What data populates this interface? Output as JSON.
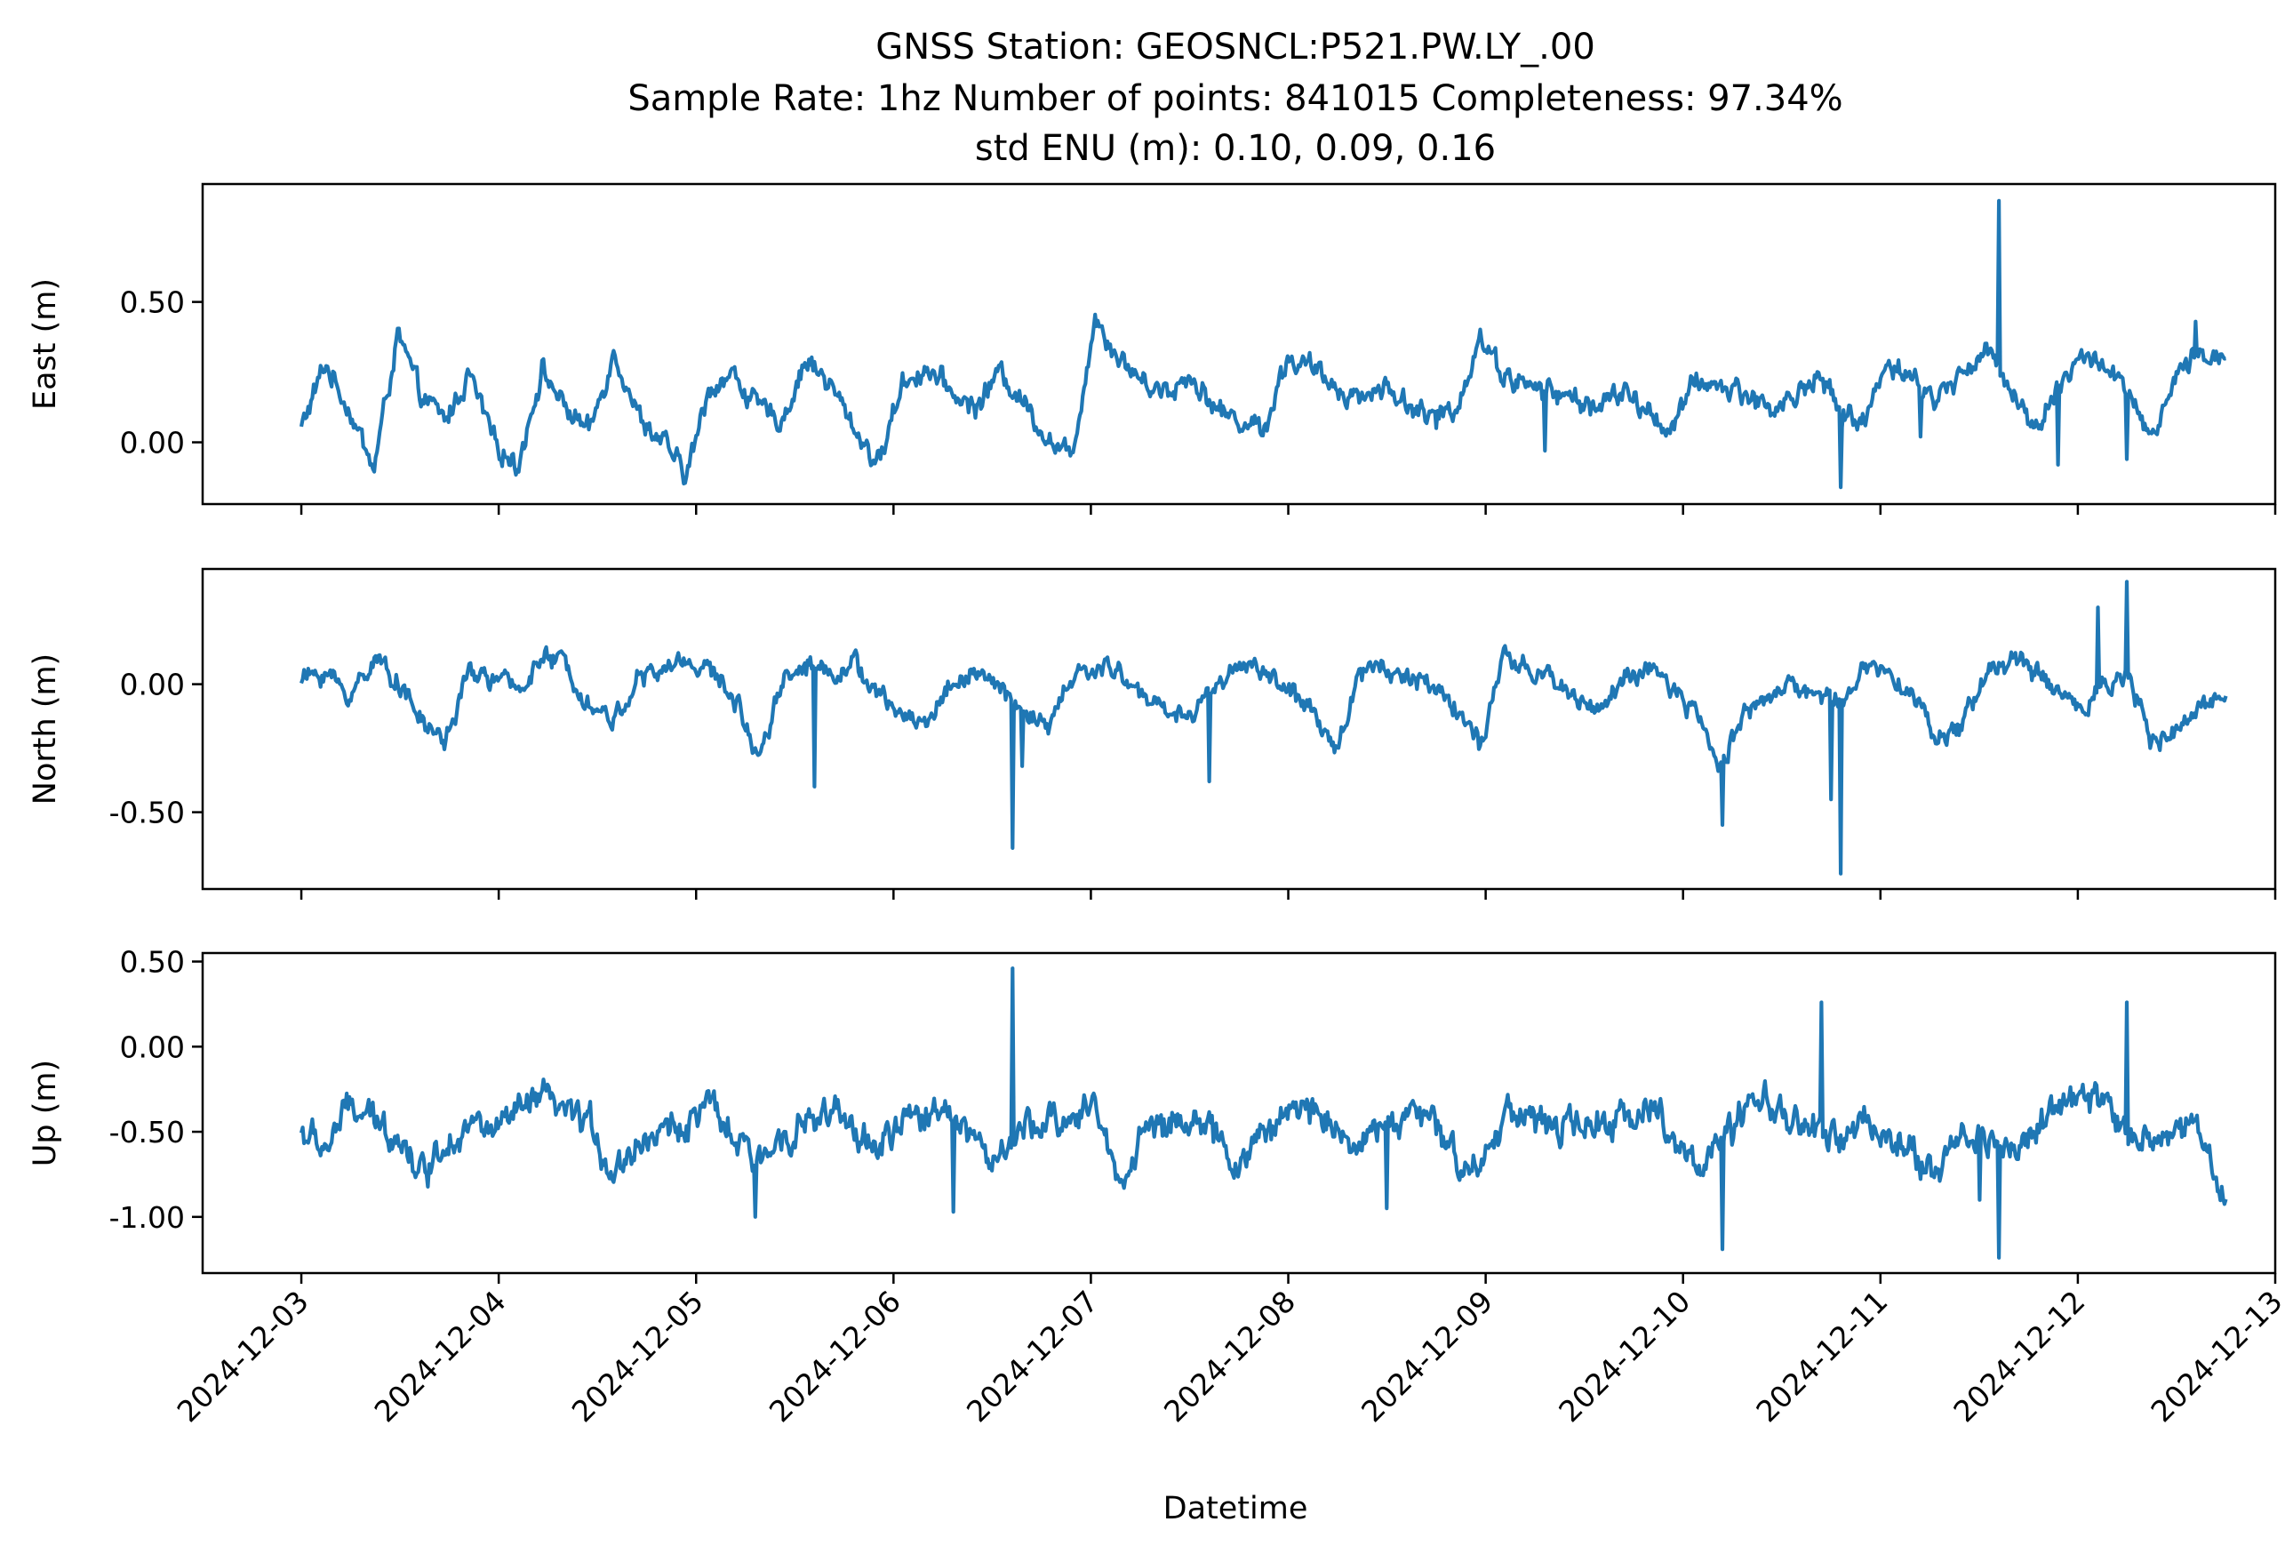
{
  "title": {
    "line1": "GNSS Station: GEOSNCL:P521.PW.LY_.00",
    "line2": "Sample Rate: 1hz   Number of points: 841015    Completeness:  97.34%",
    "line3": "std ENU (m):  0.10, 0.09, 0.16"
  },
  "chart_data": {
    "type": "line",
    "x_axis": {
      "label": "Datetime",
      "start": "2024-12-03",
      "end": "2024-12-12 18:00",
      "xlim": [
        "2024-12-02 12:00",
        "2024-12-13 00:00"
      ],
      "ticks": [
        "2024-12-03",
        "2024-12-04",
        "2024-12-05",
        "2024-12-06",
        "2024-12-07",
        "2024-12-08",
        "2024-12-09",
        "2024-12-10",
        "2024-12-11",
        "2024-12-12",
        "2024-12-13"
      ]
    },
    "color": "#1f77b4",
    "panels": [
      {
        "name": "east",
        "ylabel": "East (m)",
        "ylim": [
          -0.22,
          0.92
        ],
        "yticks": [
          0.0,
          0.5
        ],
        "ytick_labels": [
          "0.00",
          "0.50"
        ],
        "show_x_tick_labels": false,
        "baseline": [
          0.05,
          0.28,
          0.12,
          -0.1,
          0.38,
          0.16,
          0.08,
          0.24,
          0.0,
          -0.08,
          0.26,
          0.12,
          0.04,
          0.33,
          0.1,
          0.0,
          -0.12,
          0.2,
          0.24,
          0.12,
          0.08,
          0.3,
          0.2,
          0.05,
          -0.08,
          0.22,
          0.26,
          0.18,
          0.12,
          0.25,
          0.15,
          0.02,
          -0.06,
          0.45,
          0.3,
          0.22,
          0.18,
          0.24,
          0.12,
          0.08,
          0.05,
          0.3,
          0.26,
          0.2,
          0.16,
          0.2,
          0.14,
          0.08,
          0.12,
          0.38,
          0.24,
          0.2,
          0.18,
          0.15,
          0.13,
          0.18,
          0.1,
          0.05,
          0.22,
          0.2,
          0.18,
          0.12,
          0.15,
          0.25,
          0.1,
          0.08,
          0.3,
          0.22,
          0.15,
          0.25,
          0.32,
          0.22,
          0.04,
          0.2,
          0.3,
          0.28,
          0.15,
          0.0,
          0.25,
          0.3,
          0.32
        ],
        "noise": 0.03,
        "spikes": [
          [
            8.6,
            0.86
          ],
          [
            7.8,
            -0.16
          ],
          [
            6.3,
            -0.03
          ],
          [
            8.2,
            0.02
          ],
          [
            9.25,
            -0.06
          ],
          [
            9.6,
            0.43
          ],
          [
            8.9,
            -0.08
          ],
          [
            5.75,
            0.05
          ]
        ]
      },
      {
        "name": "north",
        "ylabel": "North (m)",
        "ylim": [
          -0.8,
          0.45
        ],
        "yticks": [
          0.0,
          -0.5
        ],
        "ytick_labels": [
          "0.00",
          "-0.50"
        ],
        "show_x_tick_labels": false,
        "baseline": [
          0.02,
          0.05,
          -0.05,
          0.1,
          0.02,
          -0.15,
          -0.22,
          0.05,
          0.02,
          -0.02,
          0.1,
          0.08,
          -0.08,
          -0.14,
          0.02,
          0.05,
          0.1,
          0.05,
          -0.05,
          -0.28,
          0.02,
          0.08,
          0.05,
          0.08,
          -0.05,
          -0.12,
          -0.15,
          0.0,
          0.05,
          -0.02,
          -0.1,
          -0.18,
          0.02,
          0.06,
          0.05,
          -0.05,
          -0.1,
          -0.12,
          0.0,
          0.08,
          0.05,
          -0.02,
          -0.12,
          -0.25,
          0.05,
          0.08,
          0.02,
          0.0,
          -0.08,
          -0.25,
          0.1,
          0.05,
          0.02,
          -0.05,
          -0.1,
          0.02,
          0.05,
          -0.02,
          -0.12,
          -0.32,
          -0.1,
          -0.05,
          0.0,
          -0.05,
          -0.05,
          0.05,
          0.08,
          -0.05,
          -0.2,
          -0.18,
          0.05,
          0.1,
          0.05,
          -0.02,
          -0.1,
          0.02,
          0.02,
          -0.25,
          -0.18,
          -0.1,
          0.0
        ],
        "noise": 0.03,
        "spikes": [
          [
            3.6,
            -0.64
          ],
          [
            7.2,
            -0.55
          ],
          [
            7.8,
            -0.74
          ],
          [
            7.75,
            -0.45
          ],
          [
            9.25,
            0.4
          ],
          [
            9.1,
            0.3
          ],
          [
            2.6,
            -0.4
          ],
          [
            3.65,
            -0.32
          ],
          [
            4.6,
            -0.38
          ]
        ]
      },
      {
        "name": "up",
        "ylabel": "Up (m)",
        "ylim": [
          -1.33,
          0.55
        ],
        "yticks": [
          0.5,
          0.0,
          -0.5,
          -1.0
        ],
        "ytick_labels": [
          "0.50",
          "0.00",
          "-0.50",
          "-1.00"
        ],
        "show_x_tick_labels": true,
        "baseline": [
          -0.5,
          -0.6,
          -0.35,
          -0.45,
          -0.5,
          -0.75,
          -0.55,
          -0.45,
          -0.5,
          -0.4,
          -0.3,
          -0.4,
          -0.45,
          -0.75,
          -0.55,
          -0.5,
          -0.45,
          -0.35,
          -0.55,
          -0.7,
          -0.5,
          -0.45,
          -0.4,
          -0.5,
          -0.6,
          -0.45,
          -0.4,
          -0.35,
          -0.55,
          -0.7,
          -0.5,
          -0.45,
          -0.4,
          -0.35,
          -0.8,
          -0.5,
          -0.45,
          -0.4,
          -0.55,
          -0.7,
          -0.5,
          -0.4,
          -0.35,
          -0.45,
          -0.6,
          -0.45,
          -0.4,
          -0.45,
          -0.65,
          -0.7,
          -0.4,
          -0.35,
          -0.5,
          -0.45,
          -0.5,
          -0.4,
          -0.35,
          -0.5,
          -0.7,
          -0.6,
          -0.4,
          -0.3,
          -0.45,
          -0.5,
          -0.55,
          -0.45,
          -0.5,
          -0.65,
          -0.75,
          -0.5,
          -0.55,
          -0.6,
          -0.5,
          -0.35,
          -0.3,
          -0.35,
          -0.5,
          -0.55,
          -0.45,
          -0.5,
          -0.95
        ],
        "noise": 0.07,
        "spikes": [
          [
            3.6,
            0.46
          ],
          [
            7.2,
            -1.19
          ],
          [
            8.6,
            -1.24
          ],
          [
            7.7,
            0.26
          ],
          [
            9.25,
            0.26
          ],
          [
            2.3,
            -1.0
          ],
          [
            3.3,
            -0.97
          ],
          [
            8.5,
            -0.9
          ],
          [
            5.5,
            -0.95
          ],
          [
            6.25,
            -0.5
          ]
        ]
      }
    ]
  }
}
